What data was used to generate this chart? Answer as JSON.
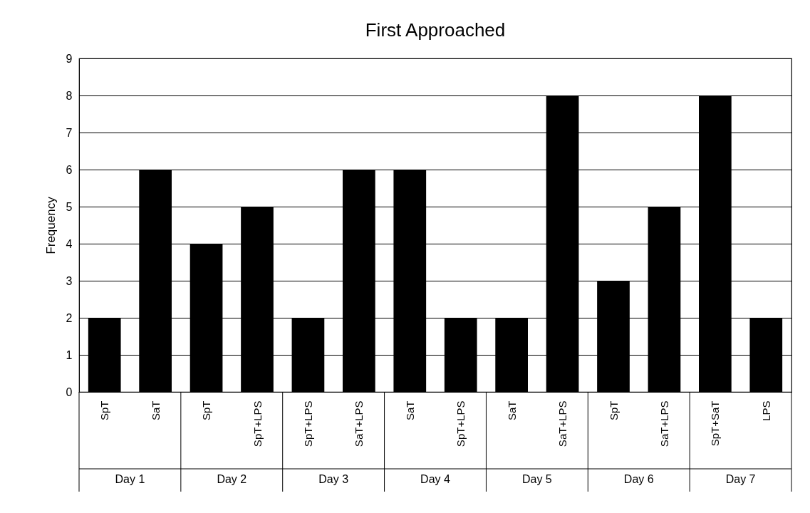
{
  "chart_data": {
    "type": "bar",
    "title": "First Approached",
    "ylabel": "Frequency",
    "categories": [
      "SpT",
      "SaT",
      "SpT",
      "SpT+LPS",
      "SpT+LPS",
      "SaT+LPS",
      "SaT",
      "SpT+LPS",
      "SaT",
      "SaT+LPS",
      "SpT",
      "SaT+LPS",
      "SpT+SaT",
      "LPS"
    ],
    "values": [
      2,
      6,
      4,
      5,
      2,
      6,
      6,
      2,
      2,
      8,
      3,
      5,
      8,
      2
    ],
    "color": "#000000",
    "ylim": [
      0,
      9
    ],
    "yticks": [
      0,
      1,
      2,
      3,
      4,
      5,
      6,
      7,
      8,
      9
    ],
    "grid": "y",
    "annotations": [
      "Day 1",
      "Day 2",
      "Day 3",
      "Day 4",
      "Day 5",
      "Day 6",
      "Day 7"
    ]
  }
}
